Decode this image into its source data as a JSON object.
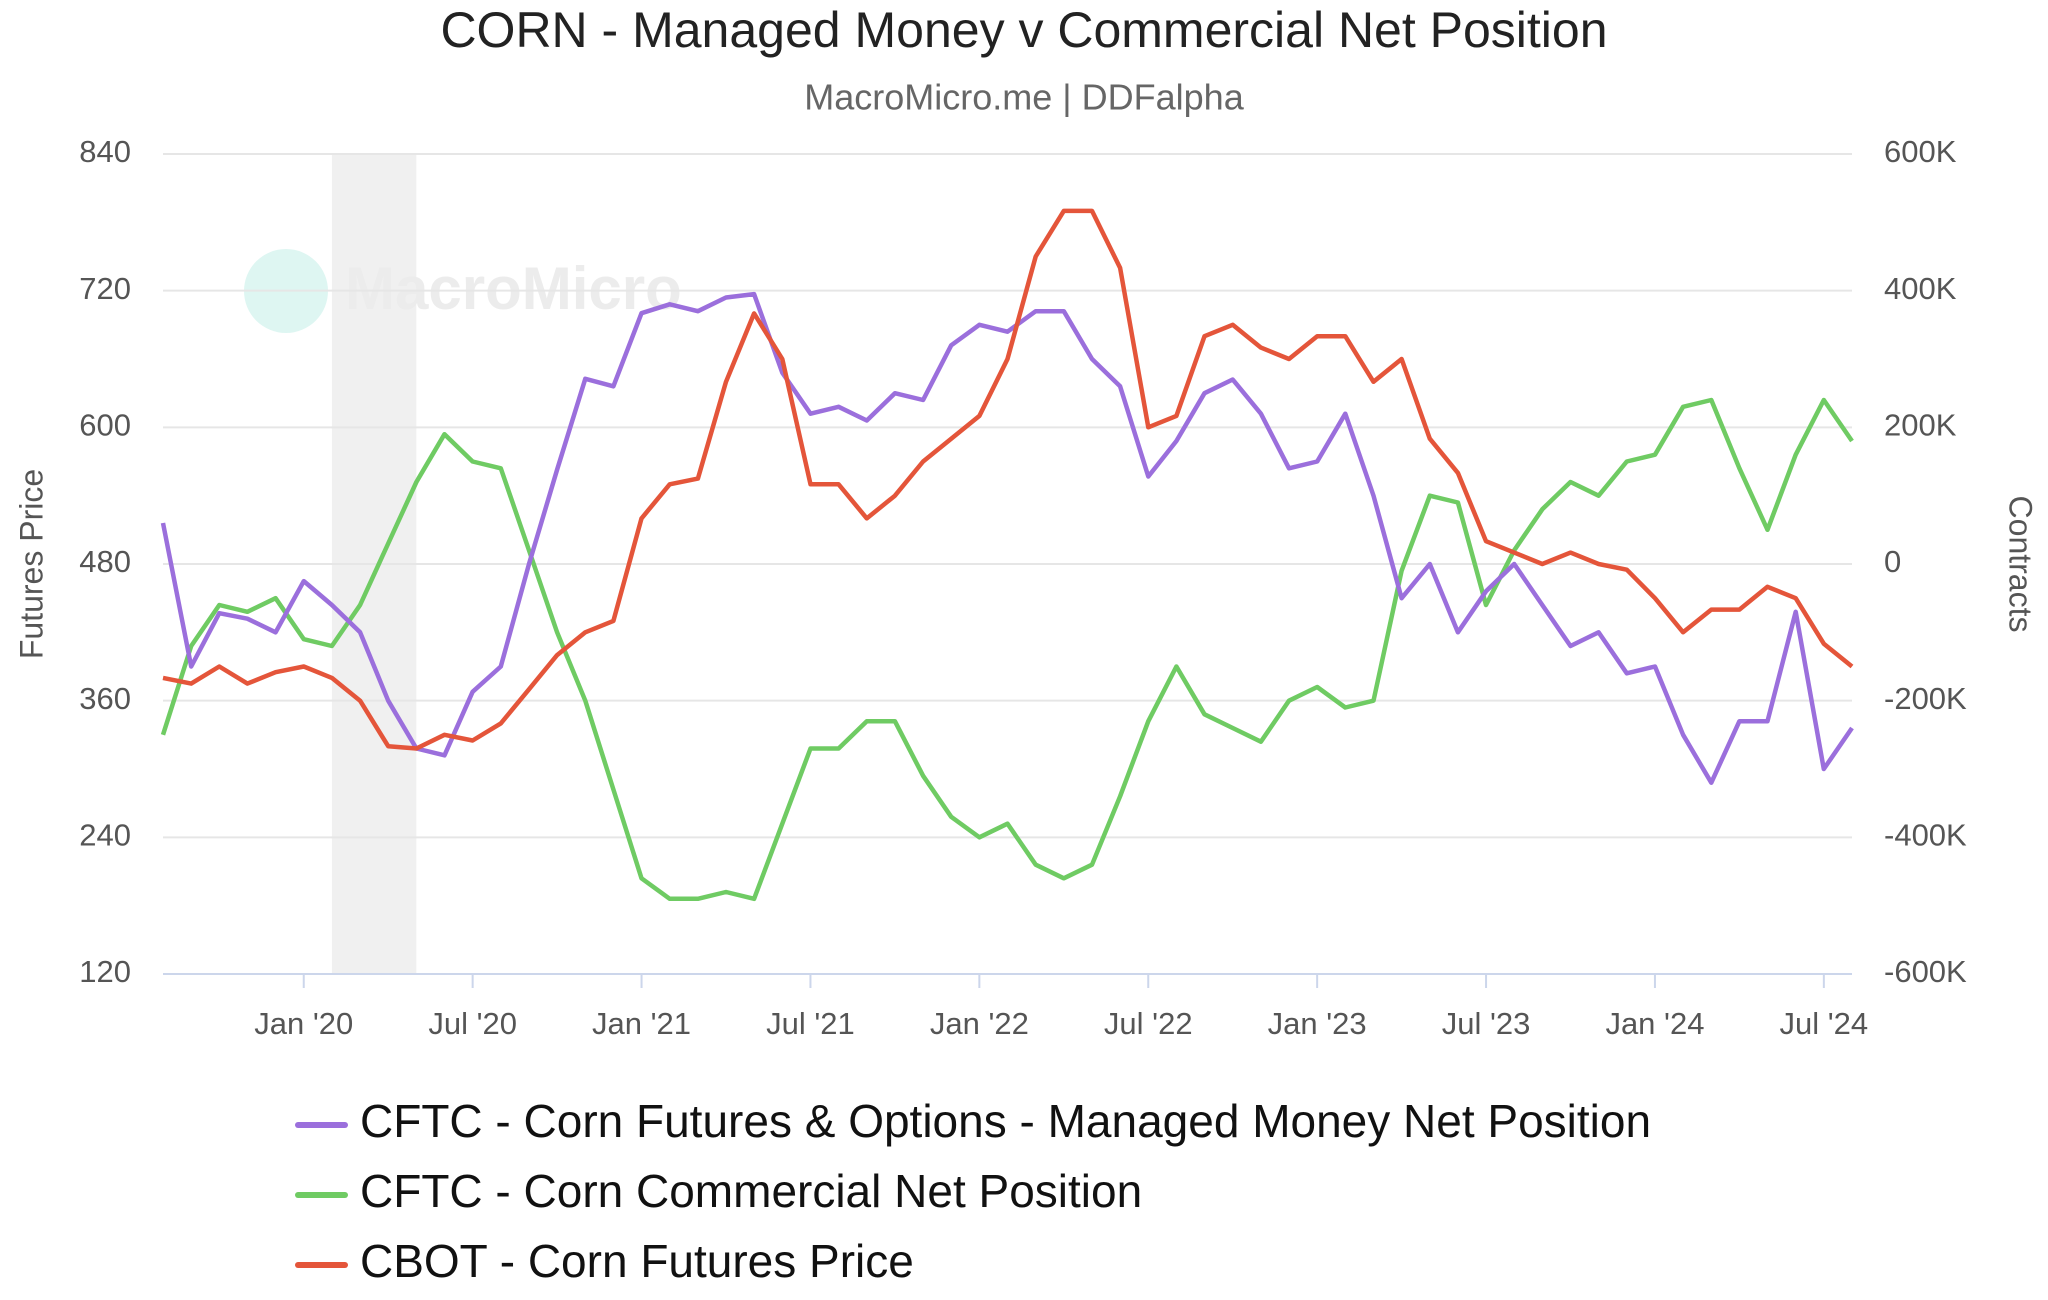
{
  "chart_data": {
    "type": "line",
    "title": "CORN - Managed Money v Commercial Net Position",
    "subtitle": "MacroMicro.me | DDFalpha",
    "watermark": "MacroMicro",
    "ylabel": "Futures Price",
    "y2label": "Contracts",
    "x": [
      "2019-08",
      "2019-09",
      "2019-10",
      "2019-11",
      "2019-12",
      "2020-01",
      "2020-02",
      "2020-03",
      "2020-04",
      "2020-05",
      "2020-06",
      "2020-07",
      "2020-08",
      "2020-09",
      "2020-10",
      "2020-11",
      "2020-12",
      "2021-01",
      "2021-02",
      "2021-03",
      "2021-04",
      "2021-05",
      "2021-06",
      "2021-07",
      "2021-08",
      "2021-09",
      "2021-10",
      "2021-11",
      "2021-12",
      "2022-01",
      "2022-02",
      "2022-03",
      "2022-04",
      "2022-05",
      "2022-06",
      "2022-07",
      "2022-08",
      "2022-09",
      "2022-10",
      "2022-11",
      "2022-12",
      "2023-01",
      "2023-02",
      "2023-03",
      "2023-04",
      "2023-05",
      "2023-06",
      "2023-07",
      "2023-08",
      "2023-09",
      "2023-10",
      "2023-11",
      "2023-12",
      "2024-01",
      "2024-02",
      "2024-03",
      "2024-04",
      "2024-05",
      "2024-06",
      "2024-07",
      "2024-08"
    ],
    "xlim": [
      "2019-08",
      "2024-08"
    ],
    "xticks": [
      {
        "value": "2020-01",
        "label": "Jan '20"
      },
      {
        "value": "2020-07",
        "label": "Jul '20"
      },
      {
        "value": "2021-01",
        "label": "Jan '21"
      },
      {
        "value": "2021-07",
        "label": "Jul '21"
      },
      {
        "value": "2022-01",
        "label": "Jan '22"
      },
      {
        "value": "2022-07",
        "label": "Jul '22"
      },
      {
        "value": "2023-01",
        "label": "Jan '23"
      },
      {
        "value": "2023-07",
        "label": "Jul '23"
      },
      {
        "value": "2024-01",
        "label": "Jan '24"
      },
      {
        "value": "2024-07",
        "label": "Jul '24"
      }
    ],
    "ylim": [
      120,
      840
    ],
    "yticks": [
      120,
      240,
      360,
      480,
      600,
      720,
      840
    ],
    "y2lim": [
      -600000,
      600000
    ],
    "y2ticks": [
      {
        "value": -600000,
        "label": "-600K"
      },
      {
        "value": -400000,
        "label": "-400K"
      },
      {
        "value": -200000,
        "label": "-200K"
      },
      0,
      {
        "value": 200000,
        "label": "200K"
      },
      {
        "value": 400000,
        "label": "400K"
      },
      {
        "value": 600000,
        "label": "600K"
      }
    ],
    "grid": true,
    "bands": [
      {
        "from": "2020-02",
        "to": "2020-05",
        "color": "#f0f0f0"
      }
    ],
    "legend": "bottom",
    "series": [
      {
        "name": "CFTC - Corn Futures & Options - Managed Money Net Position",
        "color": "#9b6fdc",
        "axis": "y2",
        "values": [
          60000,
          -150000,
          -72000,
          -80000,
          -100000,
          -25000,
          -60000,
          -100000,
          -200000,
          -270000,
          -280000,
          -187000,
          -150000,
          0,
          138000,
          271000,
          260000,
          367000,
          380000,
          370000,
          390000,
          395000,
          280000,
          220000,
          230000,
          210000,
          250000,
          240000,
          320000,
          350000,
          340000,
          370000,
          370000,
          300000,
          260000,
          128000,
          180000,
          250000,
          270000,
          220000,
          140000,
          150000,
          220000,
          100000,
          -50000,
          0,
          -100000,
          -40000,
          0,
          -60000,
          -120000,
          -100000,
          -160000,
          -150000,
          -250000,
          -320000,
          -230000,
          -230000,
          -70000,
          -300000,
          -240000
        ]
      },
      {
        "name": "CFTC - Corn Commercial Net Position",
        "color": "#6fcb63",
        "axis": "y2",
        "values": [
          -250000,
          -120000,
          -60000,
          -70000,
          -50000,
          -110000,
          -120000,
          -60000,
          30000,
          120000,
          190000,
          150000,
          140000,
          20000,
          -100000,
          -200000,
          -330000,
          -460000,
          -490000,
          -490000,
          -480000,
          -490000,
          -380000,
          -270000,
          -270000,
          -230000,
          -230000,
          -310000,
          -370000,
          -400000,
          -380000,
          -440000,
          -460000,
          -440000,
          -340000,
          -230000,
          -150000,
          -220000,
          -240000,
          -260000,
          -200000,
          -180000,
          -210000,
          -200000,
          -10000,
          100000,
          90000,
          -60000,
          20000,
          80000,
          120000,
          100000,
          150000,
          160000,
          230000,
          240000,
          140000,
          50000,
          160000,
          240000,
          180000
        ]
      },
      {
        "name": "CBOT - Corn Futures Price",
        "color": "#e4553a",
        "axis": "y",
        "values": [
          380,
          375,
          390,
          375,
          385,
          390,
          380,
          360,
          320,
          318,
          330,
          325,
          340,
          370,
          400,
          420,
          430,
          520,
          550,
          555,
          640,
          700,
          660,
          550,
          550,
          520,
          540,
          570,
          590,
          610,
          660,
          750,
          790,
          790,
          740,
          600,
          610,
          680,
          690,
          670,
          660,
          680,
          680,
          640,
          660,
          590,
          560,
          500,
          490,
          480,
          490,
          480,
          475,
          450,
          420,
          440,
          440,
          460,
          450,
          410,
          390
        ]
      }
    ]
  }
}
